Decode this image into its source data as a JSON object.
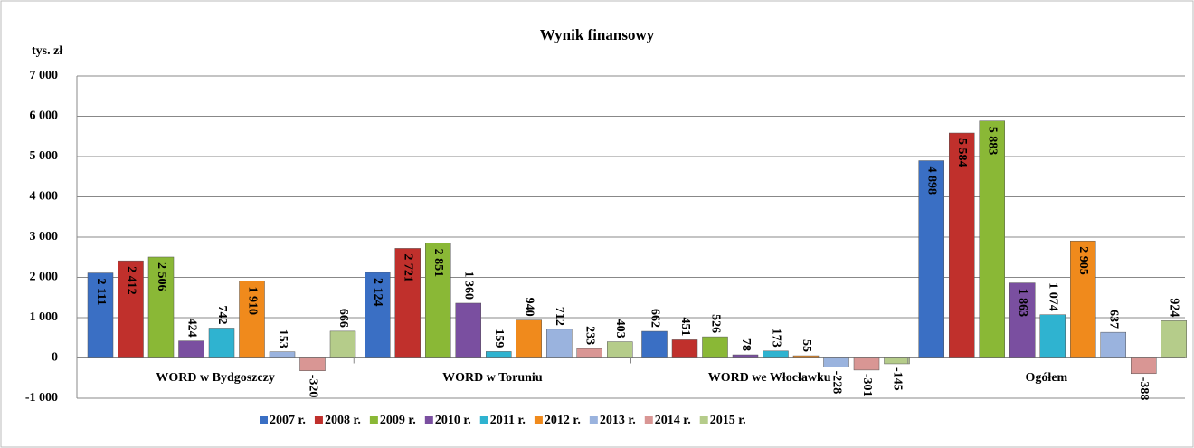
{
  "chart_data": {
    "type": "bar",
    "title": "Wynik finansowy",
    "y_label": "tys. zł",
    "categories": [
      "WORD  w Bydgoszczy",
      "WORD w Toruniu",
      "WORD we Włocławku",
      "Ogółem"
    ],
    "ylim": [
      -1000,
      7000
    ],
    "yticks": [
      {
        "value": -1000,
        "label": "-1 000"
      },
      0,
      {
        "value": 1000,
        "label": "1 000"
      },
      {
        "value": 2000,
        "label": "2 000"
      },
      {
        "value": 3000,
        "label": "3 000"
      },
      {
        "value": 4000,
        "label": "4 000"
      },
      {
        "value": 5000,
        "label": "5 000"
      },
      {
        "value": 6000,
        "label": "6 000"
      },
      {
        "value": 7000,
        "label": "7 000"
      }
    ],
    "grid": true,
    "legend": "bottom",
    "series": [
      {
        "name": "2007 r.",
        "color": "#3a6fc4",
        "values": [
          2111,
          2124,
          662,
          4898
        ],
        "value_labels": [
          "2 111",
          "2 124",
          "662",
          "4 898"
        ]
      },
      {
        "name": "2008 r.",
        "color": "#c0302c",
        "values": [
          2412,
          2721,
          451,
          5584
        ],
        "value_labels": [
          "2 412",
          "2 721",
          "451",
          "5 584"
        ]
      },
      {
        "name": "2009 r.",
        "color": "#8ab836",
        "values": [
          2506,
          2851,
          526,
          5883
        ],
        "value_labels": [
          "2 506",
          "2 851",
          "526",
          "5 883"
        ]
      },
      {
        "name": "2010 r.",
        "color": "#7a4fa0",
        "values": [
          424,
          1360,
          78,
          1863
        ],
        "value_labels": [
          "424",
          "1 360",
          "78",
          "1 863"
        ]
      },
      {
        "name": "2011 r.",
        "color": "#2fb3d0",
        "values": [
          742,
          159,
          173,
          1074
        ],
        "value_labels": [
          "742",
          "159",
          "173",
          "1 074"
        ]
      },
      {
        "name": "2012 r.",
        "color": "#f08a1c",
        "values": [
          1910,
          940,
          55,
          2905
        ],
        "value_labels": [
          "1 910",
          "940",
          "55",
          "2 905"
        ]
      },
      {
        "name": "2013 r.",
        "color": "#9ab3de",
        "values": [
          153,
          712,
          -228,
          637
        ],
        "value_labels": [
          "153",
          "712",
          "-228",
          "637"
        ]
      },
      {
        "name": "2014 r.",
        "color": "#d99694",
        "values": [
          -320,
          233,
          -301,
          -388
        ],
        "value_labels": [
          "-320",
          "233",
          "-301",
          "-388"
        ]
      },
      {
        "name": "2015 r.",
        "color": "#b5cc8a",
        "values": [
          666,
          403,
          -145,
          924
        ],
        "value_labels": [
          "666",
          "403",
          "-145",
          "924"
        ]
      }
    ]
  }
}
